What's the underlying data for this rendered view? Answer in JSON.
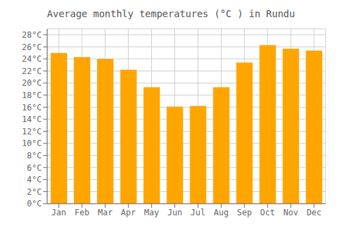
{
  "chart_data": {
    "type": "bar",
    "title": "Average monthly temperatures (°C ) in Rundu",
    "categories": [
      "Jan",
      "Feb",
      "Mar",
      "Apr",
      "May",
      "Jun",
      "Jul",
      "Aug",
      "Sep",
      "Oct",
      "Nov",
      "Dec"
    ],
    "values": [
      25.0,
      24.3,
      24.0,
      22.2,
      19.3,
      16.1,
      16.2,
      19.3,
      23.4,
      26.3,
      25.7,
      25.4
    ],
    "color": "#FFA500",
    "ylim": [
      0,
      29
    ],
    "yticks": [
      {
        "value": 0,
        "label": "0°C"
      },
      {
        "value": 2,
        "label": "2°C"
      },
      {
        "value": 4,
        "label": "4°C"
      },
      {
        "value": 6,
        "label": "6°C"
      },
      {
        "value": 8,
        "label": "8°C"
      },
      {
        "value": 10,
        "label": "10°C"
      },
      {
        "value": 12,
        "label": "12°C"
      },
      {
        "value": 14,
        "label": "14°C"
      },
      {
        "value": 16,
        "label": "16°C"
      },
      {
        "value": 18,
        "label": "18°C"
      },
      {
        "value": 20,
        "label": "20°C"
      },
      {
        "value": 22,
        "label": "22°C"
      },
      {
        "value": 24,
        "label": "24°C"
      },
      {
        "value": 26,
        "label": "26°C"
      },
      {
        "value": 28,
        "label": "28°C"
      }
    ],
    "grid": true
  }
}
